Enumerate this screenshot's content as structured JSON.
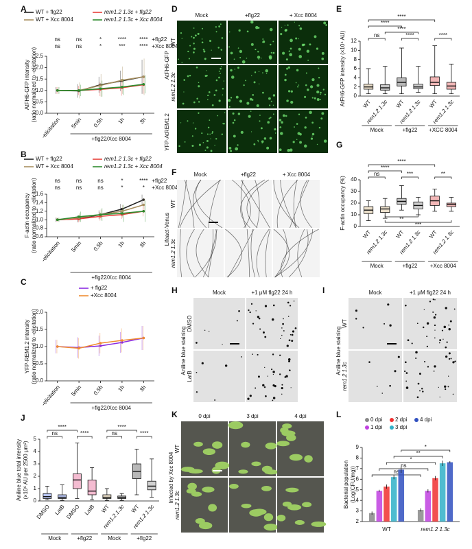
{
  "chart_data": [
    {
      "panel": "A",
      "type": "line",
      "ylabel": [
        "AtFH6-GFP intensity",
        "(ratio normalized to -elicitation)"
      ],
      "categories": [
        "-elicitation",
        "5min",
        "0.5h",
        "1h",
        "3h"
      ],
      "xgroup_label": "+flg22/Xcc 8004",
      "ylim": [
        0,
        2.5
      ],
      "yticks": [
        {
          "value": 0,
          "label": "0.0"
        },
        0.5,
        {
          "value": 1,
          "label": "1.0"
        },
        1.5,
        {
          "value": 2,
          "label": "2.0"
        },
        2.5
      ],
      "series": [
        {
          "name": "WT + flg22",
          "color": "#222222",
          "values": [
            1,
            0.98,
            1.25,
            1.42,
            1.6
          ],
          "errors": [
            0.15,
            0.3,
            0.35,
            0.45,
            0.75
          ]
        },
        {
          "name": "rem1.2 1.3c + flg22",
          "color": "#e8403a",
          "values": [
            1,
            1.0,
            1.05,
            1.12,
            1.25
          ],
          "errors": [
            0.15,
            0.2,
            0.3,
            0.35,
            0.4
          ]
        },
        {
          "name": "WT + Xcc 8004",
          "color": "#a89060",
          "values": [
            1,
            1.0,
            1.22,
            1.45,
            1.6
          ],
          "errors": [
            0.15,
            0.35,
            0.5,
            0.6,
            0.8
          ]
        },
        {
          "name": "rem1.2 1.3c + Xcc 8004",
          "color": "#2e8b2e",
          "values": [
            1,
            1.0,
            1.08,
            1.15,
            1.27
          ],
          "errors": [
            0.15,
            0.25,
            0.35,
            0.35,
            0.4
          ]
        }
      ],
      "significance": [
        {
          "label": "+flg22",
          "marks": [
            "ns",
            "ns",
            "*",
            "****",
            "****"
          ]
        },
        {
          "label": "+Xcc 8004",
          "marks": [
            "ns",
            "ns",
            "*",
            "***",
            "****"
          ]
        }
      ]
    },
    {
      "panel": "B",
      "type": "line",
      "ylabel": [
        "F-actin occupancy",
        "(ratio normalized to -elicitation)"
      ],
      "categories": [
        "-elicitation",
        "5min",
        "0.5h",
        "1h",
        "3h"
      ],
      "xgroup_label": "+flg22/Xcc 8004",
      "ylim": [
        0.6,
        1.6
      ],
      "yticks": [
        0.6,
        0.8,
        {
          "value": 1,
          "label": "1.0"
        },
        1.2,
        1.4,
        1.6
      ],
      "series": [
        {
          "name": "WT + flg22",
          "color": "#222222",
          "values": [
            1,
            1.02,
            1.12,
            1.25,
            1.47
          ],
          "errors": [
            0.05,
            0.08,
            0.1,
            0.12,
            0.12
          ]
        },
        {
          "name": "rem1.2 1.3c + flg22",
          "color": "#e8403a",
          "values": [
            1,
            1.02,
            1.08,
            1.12,
            1.2
          ],
          "errors": [
            0.05,
            0.08,
            0.1,
            0.1,
            0.12
          ]
        },
        {
          "name": "WT + Xcc 8004",
          "color": "#a89060",
          "values": [
            1,
            1.05,
            1.12,
            1.2,
            1.35
          ],
          "errors": [
            0.05,
            0.1,
            0.12,
            0.15,
            0.15
          ]
        },
        {
          "name": "rem1.2 1.3c + Xcc 8004",
          "color": "#2e8b2e",
          "values": [
            1,
            1.07,
            1.12,
            1.15,
            1.2
          ],
          "errors": [
            0.05,
            0.12,
            0.15,
            0.2,
            0.25
          ]
        }
      ],
      "significance": [
        {
          "label": "+flg22",
          "marks": [
            "ns",
            "ns",
            "ns",
            "*",
            "****"
          ]
        },
        {
          "label": "+Xcc 8004",
          "marks": [
            "ns",
            "ns",
            "ns",
            "*",
            "*"
          ]
        }
      ]
    },
    {
      "panel": "C",
      "type": "line",
      "ylabel": [
        "YFP-REM1.2 intensity",
        "(ratio normalized to -elicitation)"
      ],
      "categories": [
        "-elicitation",
        "5min",
        "0.5h",
        "1h",
        "3h"
      ],
      "xgroup_label": "+flg22/Xcc 8004",
      "ylim": [
        0,
        2.0
      ],
      "yticks": [
        {
          "value": 0,
          "label": "0.0"
        },
        0.5,
        {
          "value": 1,
          "label": "1.0"
        },
        1.5,
        {
          "value": 2,
          "label": "2.0"
        }
      ],
      "series": [
        {
          "name": "+ flg22",
          "color": "#8a2be2",
          "values": [
            1,
            0.97,
            1.02,
            1.12,
            1.25
          ],
          "errors": [
            0.2,
            0.3,
            0.3,
            0.3,
            0.35
          ]
        },
        {
          "name": "+Xcc 8004",
          "color": "#f08c30",
          "values": [
            1,
            0.95,
            1.1,
            1.18,
            1.25
          ],
          "errors": [
            0.2,
            0.3,
            0.3,
            0.35,
            0.35
          ]
        }
      ]
    },
    {
      "panel": "E",
      "type": "box",
      "ylabel": [
        "AtFH6-GFP intensity (×10⁴ AU)"
      ],
      "categories": [
        "WT",
        "rem1.2 1.3c",
        "WT",
        "rem1.2 1.3c",
        "WT",
        "rem1.2 1.3c"
      ],
      "group_labels": [
        "Mock",
        "+flg22",
        "+XCC 8004"
      ],
      "ylim": [
        0,
        12
      ],
      "yticks": [
        0,
        2,
        4,
        6,
        8,
        10,
        12
      ],
      "colors": [
        "#c9a66b",
        "#555555",
        "#333333",
        "#777777",
        "#d93030",
        "#d93030"
      ],
      "boxes": [
        {
          "min": 0.5,
          "q1": 1.5,
          "median": 2,
          "q3": 2.6,
          "max": 6
        },
        {
          "min": 0.5,
          "q1": 1.3,
          "median": 1.8,
          "q3": 2.5,
          "max": 6.5
        },
        {
          "min": 0.5,
          "q1": 2.2,
          "median": 3,
          "q3": 4,
          "max": 10.5
        },
        {
          "min": 0.8,
          "q1": 1.6,
          "median": 2,
          "q3": 2.6,
          "max": 6.5
        },
        {
          "min": 0.5,
          "q1": 2.3,
          "median": 3,
          "q3": 4.2,
          "max": 11
        },
        {
          "min": 0.5,
          "q1": 1.5,
          "median": 2.2,
          "q3": 3,
          "max": 7
        }
      ],
      "comparisons": [
        "ns",
        "****",
        "****",
        "****",
        "****",
        "****"
      ]
    },
    {
      "panel": "G",
      "type": "box",
      "ylabel": [
        "F-actin occupancy (%)"
      ],
      "categories": [
        "WT",
        "rem1.2 1.3c",
        "WT",
        "rem1.2 1.3c",
        "WT",
        "rem1.2 1.3c"
      ],
      "group_labels": [
        "Mock",
        "+flg22",
        "+Xcc 8004"
      ],
      "ylim": [
        0,
        40
      ],
      "yticks": [
        0,
        10,
        20,
        30,
        40
      ],
      "colors": [
        "#c9a66b",
        "#c9a66b",
        "#555555",
        "#777777",
        "#d93030",
        "#d93030"
      ],
      "boxes": [
        {
          "min": 5,
          "q1": 11,
          "median": 14,
          "q3": 17,
          "max": 22
        },
        {
          "min": 7,
          "q1": 12,
          "median": 15,
          "q3": 17,
          "max": 24
        },
        {
          "min": 14,
          "q1": 19,
          "median": 21.5,
          "q3": 24,
          "max": 35
        },
        {
          "min": 10,
          "q1": 15,
          "median": 18,
          "q3": 21,
          "max": 25
        },
        {
          "min": 13,
          "q1": 18,
          "median": 22,
          "q3": 26,
          "max": 32
        },
        {
          "min": 13,
          "q1": 17,
          "median": 19,
          "q3": 20,
          "max": 25
        }
      ],
      "comparisons": [
        "ns",
        "***",
        "**",
        "****",
        "****",
        "**",
        "***"
      ]
    },
    {
      "panel": "J",
      "type": "box",
      "ylabel": [
        "Aniline blue total intensity",
        "(×10⁶ AU per 2500 μm²)"
      ],
      "categories": [
        "DMSO",
        "LatB",
        "DMSO",
        "LatB",
        "WT",
        "rem1.2 1.3c",
        "WT",
        "rem1.2 1.3c"
      ],
      "group_labels": [
        "Mock",
        "+flg22",
        "Mock",
        "+flg22"
      ],
      "ylim": [
        0,
        5
      ],
      "yticks": [
        0,
        1,
        2,
        3,
        4,
        5
      ],
      "colors": [
        "#2a4fd0",
        "#2a4fd0",
        "#e0407a",
        "#e0407a",
        "#c9a66b",
        "#555555",
        "#333333",
        "#777777"
      ],
      "boxes": [
        {
          "min": 0.1,
          "q1": 0.2,
          "median": 0.35,
          "q3": 0.6,
          "max": 1.2
        },
        {
          "min": 0.05,
          "q1": 0.2,
          "median": 0.3,
          "q3": 0.5,
          "max": 1.3
        },
        {
          "min": 0.2,
          "q1": 1.0,
          "median": 1.7,
          "q3": 2.2,
          "max": 4.7
        },
        {
          "min": 0.1,
          "q1": 0.5,
          "median": 0.8,
          "q3": 1.7,
          "max": 2.7
        },
        {
          "min": 0.05,
          "q1": 0.2,
          "median": 0.3,
          "q3": 0.5,
          "max": 1.0
        },
        {
          "min": 0.05,
          "q1": 0.2,
          "median": 0.3,
          "q3": 0.4,
          "max": 0.6
        },
        {
          "min": 0.5,
          "q1": 1.8,
          "median": 2.4,
          "q3": 3.0,
          "max": 4.2
        },
        {
          "min": 0.3,
          "q1": 0.9,
          "median": 1.2,
          "q3": 1.6,
          "max": 3.4
        }
      ],
      "comparisons": [
        "ns",
        "****",
        "****",
        "ns",
        "****",
        "****"
      ]
    },
    {
      "panel": "L",
      "type": "bar",
      "ylabel": [
        "Bacterial population",
        "(Log(CFU/mg))"
      ],
      "categories": [
        "WT",
        "rem1.2 1.3c"
      ],
      "ylim": [
        2,
        9
      ],
      "yticks": [
        2,
        3,
        4,
        5,
        6,
        7,
        8,
        9
      ],
      "series": [
        {
          "name": "0 dpi",
          "color": "#888888",
          "values": [
            2.8,
            3.1
          ],
          "errors": [
            0.15,
            0.15
          ]
        },
        {
          "name": "1 dpi",
          "color": "#c040e0",
          "values": [
            4.9,
            4.9
          ],
          "errors": [
            0.1,
            0.15
          ]
        },
        {
          "name": "2 dpi",
          "color": "#f03030",
          "values": [
            5.3,
            6.1
          ],
          "errors": [
            0.2,
            0.2
          ]
        },
        {
          "name": "3 dpi",
          "color": "#30b0c8",
          "values": [
            6.2,
            7.5
          ],
          "errors": [
            0.2,
            0.25
          ]
        },
        {
          "name": "4 dpi",
          "color": "#3050c0",
          "values": [
            6.9,
            7.6
          ],
          "errors": [
            0.3,
            0.1
          ]
        }
      ],
      "comparisons": [
        "ns",
        "ns",
        "*",
        "**",
        "*"
      ]
    }
  ],
  "image_panels": [
    {
      "panel": "D",
      "columns": [
        "Mock",
        "+flg22",
        "+ Xcc 8004"
      ],
      "rows": [
        "WT",
        "rem1.2 1.3c"
      ],
      "side_labels": [
        "AtFH6-GFP",
        "YFP-AtREM1.2"
      ]
    },
    {
      "panel": "F",
      "columns": [
        "Mock",
        "+flg22",
        "+ Xcc 8004"
      ],
      "rows": [
        "WT",
        "rem1.2 1.3c"
      ],
      "side_labels": [
        "Lifeact-Venus"
      ]
    },
    {
      "panel": "H",
      "columns": [
        "Mock",
        "+1 μM flg22 24 h"
      ],
      "rows": [
        "DMSO",
        "LatB"
      ],
      "side_labels": [
        "Aniline blue staining"
      ]
    },
    {
      "panel": "I",
      "columns": [
        "Mock",
        "+1 μM flg22 24 h"
      ],
      "rows": [
        "WT",
        "rem1.2 1.3c"
      ],
      "side_labels": [
        "Aniline blue staining"
      ]
    },
    {
      "panel": "K",
      "columns": [
        "0 dpi",
        "3 dpi",
        "4 dpi"
      ],
      "rows": [
        "WT",
        "rem1.2 1.3c"
      ],
      "side_labels": [
        "Infected by Xcc 8004"
      ]
    }
  ]
}
